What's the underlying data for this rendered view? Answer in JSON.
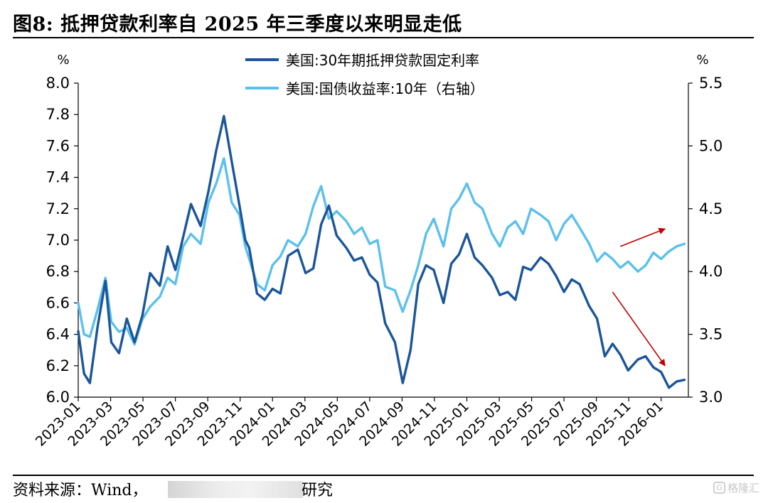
{
  "title": "图8:  抵押贷款利率自 2025 年三季度以来明显走低",
  "source": {
    "prefix": "资料来源：Wind，",
    "tail": "研究"
  },
  "watermark": {
    "icon": "G",
    "text": "格隆汇"
  },
  "colors": {
    "mortgage": "#1B5699",
    "treasury": "#5BC0EB",
    "arrow": "#C00000",
    "axis": "#000000"
  },
  "chart_data": {
    "type": "line",
    "title": "抵押贷款利率自 2025 年三季度以来明显走低",
    "xlabel": "",
    "ylabel": "%",
    "ylabel_right": "%",
    "ylim": [
      6.0,
      8.0
    ],
    "ylim_right": [
      3.0,
      5.5
    ],
    "yticks": [
      "8.0",
      "7.8",
      "7.6",
      "7.4",
      "7.2",
      "7.0",
      "6.8",
      "6.6",
      "6.4",
      "6.2",
      "6.0"
    ],
    "yticks_right": [
      "5.5",
      "5.0",
      "4.5",
      "4.0",
      "3.5",
      "3.0"
    ],
    "xticks": [
      "2023-01",
      "2023-03",
      "2023-05",
      "2023-07",
      "2023-09",
      "2023-11",
      "2024-01",
      "2024-03",
      "2024-05",
      "2024-07",
      "2024-09",
      "2024-11",
      "2025-01",
      "2025-03",
      "2025-05",
      "2025-07",
      "2025-09",
      "2025-11",
      "2026-01"
    ],
    "x_range": [
      2023.0,
      2026.14
    ],
    "legend": [
      "美国:30年期抵押贷款固定利率",
      "美国:国债收益率:10年（右轴）"
    ],
    "series": [
      {
        "name": "美国:30年期抵押贷款固定利率",
        "axis": "left",
        "x": [
          2023.0,
          2023.03,
          2023.06,
          2023.1,
          2023.14,
          2023.17,
          2023.21,
          2023.25,
          2023.29,
          2023.33,
          2023.37,
          2023.42,
          2023.46,
          2023.5,
          2023.54,
          2023.58,
          2023.63,
          2023.67,
          2023.71,
          2023.75,
          2023.79,
          2023.83,
          2023.86,
          2023.88,
          2023.92,
          2023.96,
          2024.0,
          2024.04,
          2024.08,
          2024.13,
          2024.17,
          2024.21,
          2024.25,
          2024.29,
          2024.33,
          2024.38,
          2024.42,
          2024.46,
          2024.5,
          2024.54,
          2024.58,
          2024.63,
          2024.67,
          2024.71,
          2024.75,
          2024.79,
          2024.83,
          2024.88,
          2024.92,
          2024.96,
          2025.0,
          2025.04,
          2025.08,
          2025.13,
          2025.17,
          2025.21,
          2025.25,
          2025.29,
          2025.33,
          2025.38,
          2025.42,
          2025.46,
          2025.5,
          2025.54,
          2025.58,
          2025.63,
          2025.67,
          2025.71,
          2025.75,
          2025.79,
          2025.83,
          2025.88,
          2025.92,
          2025.96,
          2026.0,
          2026.04,
          2026.08,
          2026.12
        ],
        "values": [
          6.42,
          6.15,
          6.09,
          6.45,
          6.74,
          6.35,
          6.28,
          6.5,
          6.35,
          6.52,
          6.79,
          6.71,
          6.96,
          6.81,
          7.02,
          7.23,
          7.09,
          7.31,
          7.57,
          7.79,
          7.5,
          7.22,
          7.0,
          6.95,
          6.66,
          6.62,
          6.69,
          6.66,
          6.9,
          6.94,
          6.79,
          6.82,
          7.1,
          7.22,
          7.03,
          6.95,
          6.87,
          6.89,
          6.78,
          6.73,
          6.47,
          6.35,
          6.09,
          6.3,
          6.72,
          6.84,
          6.81,
          6.6,
          6.85,
          6.91,
          7.04,
          6.89,
          6.84,
          6.76,
          6.65,
          6.67,
          6.62,
          6.83,
          6.81,
          6.89,
          6.85,
          6.77,
          6.67,
          6.75,
          6.72,
          6.58,
          6.5,
          6.26,
          6.34,
          6.27,
          6.17,
          6.24,
          6.26,
          6.19,
          6.16,
          6.06,
          6.1,
          6.11
        ]
      },
      {
        "name": "美国:国债收益率:10年（右轴）",
        "axis": "right",
        "x": [
          2023.0,
          2023.03,
          2023.06,
          2023.1,
          2023.14,
          2023.17,
          2023.21,
          2023.25,
          2023.29,
          2023.33,
          2023.37,
          2023.42,
          2023.46,
          2023.5,
          2023.54,
          2023.58,
          2023.63,
          2023.67,
          2023.71,
          2023.75,
          2023.79,
          2023.83,
          2023.86,
          2023.88,
          2023.92,
          2023.96,
          2024.0,
          2024.04,
          2024.08,
          2024.13,
          2024.17,
          2024.21,
          2024.25,
          2024.29,
          2024.33,
          2024.38,
          2024.42,
          2024.46,
          2024.5,
          2024.54,
          2024.58,
          2024.63,
          2024.67,
          2024.71,
          2024.75,
          2024.79,
          2024.83,
          2024.88,
          2024.92,
          2024.96,
          2025.0,
          2025.04,
          2025.08,
          2025.13,
          2025.17,
          2025.21,
          2025.25,
          2025.29,
          2025.33,
          2025.38,
          2025.42,
          2025.46,
          2025.5,
          2025.54,
          2025.58,
          2025.63,
          2025.67,
          2025.71,
          2025.75,
          2025.79,
          2025.83,
          2025.88,
          2025.92,
          2025.96,
          2026.0,
          2026.04,
          2026.08,
          2026.12
        ],
        "values": [
          3.75,
          3.5,
          3.48,
          3.7,
          3.95,
          3.6,
          3.52,
          3.55,
          3.42,
          3.62,
          3.72,
          3.8,
          3.95,
          3.9,
          4.2,
          4.3,
          4.22,
          4.55,
          4.7,
          4.9,
          4.55,
          4.45,
          4.2,
          4.1,
          3.9,
          3.85,
          4.05,
          4.12,
          4.25,
          4.2,
          4.3,
          4.52,
          4.68,
          4.42,
          4.48,
          4.4,
          4.3,
          4.35,
          4.22,
          4.25,
          3.88,
          3.85,
          3.68,
          3.85,
          4.05,
          4.3,
          4.42,
          4.2,
          4.5,
          4.58,
          4.7,
          4.55,
          4.5,
          4.3,
          4.2,
          4.35,
          4.4,
          4.3,
          4.5,
          4.45,
          4.4,
          4.25,
          4.38,
          4.45,
          4.35,
          4.22,
          4.08,
          4.15,
          4.1,
          4.03,
          4.08,
          4.0,
          4.05,
          4.15,
          4.1,
          4.16,
          4.2,
          4.22
        ]
      }
    ],
    "annotations": [
      {
        "type": "arrow",
        "from": [
          2025.79,
          4.2
        ],
        "to": [
          2026.02,
          4.34
        ],
        "axis": "right"
      },
      {
        "type": "arrow",
        "from": [
          2025.75,
          6.67
        ],
        "to": [
          2026.02,
          6.2
        ],
        "axis": "left"
      }
    ]
  }
}
